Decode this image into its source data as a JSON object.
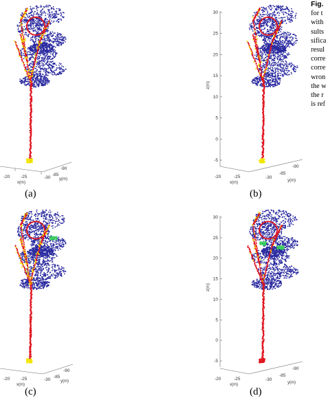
{
  "figure": {
    "sublabels": [
      "(a)",
      "(b)",
      "(c)",
      "(d)"
    ],
    "caption_fragments": [
      "Fig.",
      "for t",
      "with",
      "sults",
      "sifica",
      "resul",
      "corre",
      "corre",
      "wron",
      "the w",
      "the r",
      "is ref"
    ]
  },
  "axes": {
    "z_label": "z(m)",
    "x_label": "x(m)",
    "y_label": "y(m)",
    "z_ticks": [
      "30",
      "25",
      "20",
      "15",
      "10",
      "5",
      "0",
      "-5"
    ],
    "x_ticks": [
      "-20",
      "-25"
    ],
    "y_ticks": [
      "-30",
      "-85",
      "-90"
    ]
  },
  "colors": {
    "leaf": "#2a2aa0",
    "stem": "#e0141e",
    "error": "#f2e600",
    "green": "#3ad35a",
    "axis": "#555555"
  },
  "panels": [
    {
      "label": "(a)",
      "shows_z_axis": false,
      "green_patches": 0
    },
    {
      "label": "(b)",
      "shows_z_axis": true,
      "green_patches": 0
    },
    {
      "label": "(c)",
      "shows_z_axis": false,
      "green_patches": 1
    },
    {
      "label": "(d)",
      "shows_z_axis": true,
      "green_patches": 2
    }
  ]
}
